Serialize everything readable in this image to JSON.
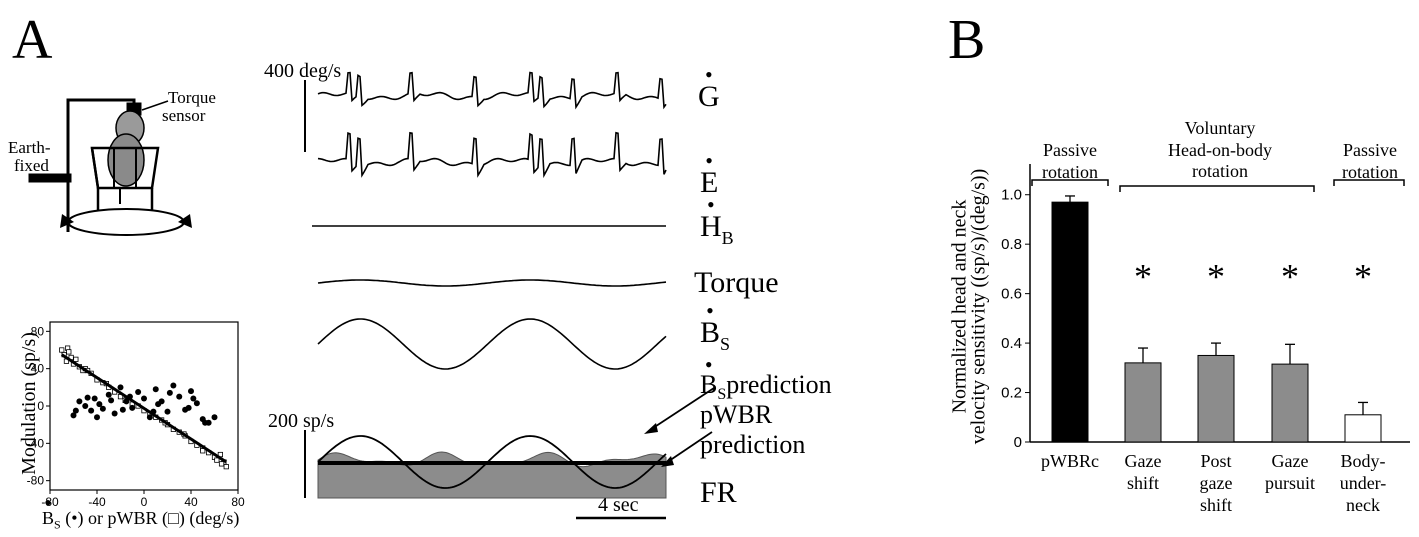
{
  "panelA": {
    "letter": "A",
    "apparatus": {
      "torque_label_1": "Torque",
      "torque_label_2": "sensor",
      "earth_label_1": "Earth-",
      "earth_label_2": "fixed"
    },
    "scale_vel": "400 deg/s",
    "scale_fr": "200 sp/s",
    "scale_time": "4 sec",
    "traces": {
      "g": "G",
      "e": "E",
      "hb": "H",
      "hb_sub": "B",
      "torque": "Torque",
      "bs": "B",
      "bs_sub": "S",
      "bs_pred": "B",
      "bs_pred_sub": "S",
      "bs_pred_word": "prediction",
      "pwbr_pred_1": "pWBR",
      "pwbr_pred_2": "prediction",
      "fr": "FR"
    },
    "scatter": {
      "ylabel": "Modulation (sp/s)",
      "xlabel_b": "B",
      "xlabel_b_sub": "S",
      "xlabel_rest": "(•) or pWBR (□) (deg/s)",
      "x_ticks": [
        "-80",
        "-40",
        "0",
        "40",
        "80"
      ],
      "y_ticks": [
        "80",
        "40",
        "0",
        "-40",
        "-80"
      ]
    }
  },
  "panelB": {
    "letter": "B",
    "ylabel_line1": "Normalized head and neck",
    "ylabel_line2": "velocity sensitivity ((sp/s)/(deg/s))",
    "group_passive_1": "Passive",
    "group_passive_1b": "rotation",
    "group_voluntary_1": "Voluntary",
    "group_voluntary_2": "Head-on-body",
    "group_voluntary_3": "rotation",
    "group_passive_2": "Passive",
    "group_passive_2b": "rotation",
    "star": "*"
  },
  "chart_data": [
    {
      "type": "scatter",
      "xlabel": "Bs (•) or pWBR (□) (deg/s)",
      "ylabel": "Modulation (sp/s)",
      "xlim": [
        -80,
        80
      ],
      "ylim": [
        -90,
        90
      ],
      "series": [
        {
          "name": "Bs (•)",
          "marker": "filled-circle",
          "x": [
            -60,
            -55,
            -50,
            -45,
            -42,
            -38,
            -35,
            -30,
            -25,
            -20,
            -15,
            -10,
            -5,
            0,
            5,
            10,
            15,
            20,
            25,
            30,
            35,
            40,
            45,
            50,
            55,
            60,
            -58,
            -40,
            -28,
            -12,
            8,
            22,
            38,
            52,
            -48,
            -18,
            12,
            42
          ],
          "y": [
            -10,
            5,
            0,
            -5,
            8,
            2,
            -3,
            12,
            -8,
            20,
            5,
            -2,
            15,
            8,
            -12,
            18,
            5,
            -6,
            22,
            10,
            -4,
            16,
            3,
            -14,
            -18,
            -12,
            -5,
            -12,
            6,
            10,
            -6,
            14,
            -2,
            -18,
            9,
            -4,
            2,
            8
          ]
        },
        {
          "name": "pWBR (□)",
          "marker": "open-square",
          "x": [
            -70,
            -68,
            -66,
            -65,
            -62,
            -60,
            -58,
            -55,
            -52,
            -50,
            -45,
            -40,
            -35,
            -30,
            -25,
            -20,
            -15,
            -10,
            -5,
            0,
            5,
            10,
            15,
            20,
            25,
            30,
            35,
            40,
            45,
            50,
            55,
            60,
            62,
            65,
            68,
            70,
            -64,
            -48,
            -32,
            -16,
            18,
            34,
            50,
            66
          ],
          "y": [
            60,
            55,
            48,
            62,
            52,
            45,
            50,
            42,
            38,
            40,
            35,
            28,
            25,
            20,
            15,
            10,
            8,
            2,
            0,
            -5,
            -8,
            -12,
            -15,
            -20,
            -25,
            -28,
            -32,
            -38,
            -42,
            -45,
            -50,
            -55,
            -58,
            -52,
            -60,
            -65,
            58,
            38,
            24,
            6,
            -18,
            -30,
            -48,
            -62
          ]
        }
      ],
      "regression": {
        "x": [
          -70,
          70
        ],
        "y": [
          55,
          -60
        ]
      }
    },
    {
      "type": "bar",
      "ylabel": "Normalized head and neck velocity sensitivity ((sp/s)/(deg/s))",
      "ylim": [
        0,
        1.1
      ],
      "y_ticks": [
        "0",
        "0.2",
        "0.4",
        "0.6",
        "0.8",
        "1.0"
      ],
      "categories": [
        "pWBRc",
        "Gaze shift",
        "Post gaze shift",
        "Gaze pursuit",
        "Body-under-neck"
      ],
      "category_lines": [
        [
          "pWBRc"
        ],
        [
          "Gaze",
          "shift"
        ],
        [
          "Post",
          "gaze",
          "shift"
        ],
        [
          "Gaze",
          "pursuit"
        ],
        [
          "Body-",
          "under-",
          "neck"
        ]
      ],
      "values": [
        0.97,
        0.32,
        0.35,
        0.315,
        0.11
      ],
      "errors": [
        0.025,
        0.06,
        0.05,
        0.08,
        0.05
      ],
      "fills": [
        "#000000",
        "#8c8c8c",
        "#8c8c8c",
        "#8c8c8c",
        "#ffffff"
      ],
      "significant": [
        false,
        true,
        true,
        true,
        true
      ]
    }
  ]
}
